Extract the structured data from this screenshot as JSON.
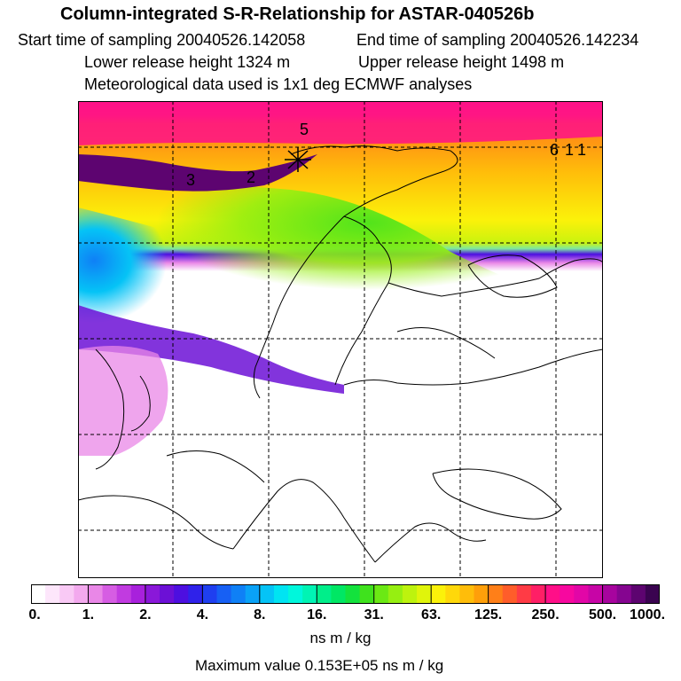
{
  "header": {
    "title": "Column-integrated S-R-Relationship for ASTAR-040526b",
    "start": "Start time of sampling 20040526.142058",
    "end": "End time of sampling 20040526.142234",
    "lower": "Lower release height 1324 m",
    "upper": "Upper release height 1498 m",
    "met": "Meteorological data used is 1x1 deg ECMWF analyses"
  },
  "map": {
    "labels": [
      "5",
      "3",
      "2",
      "6",
      "1",
      "1"
    ]
  },
  "colorbar": {
    "ticks": [
      "0.",
      "1.",
      "2.",
      "4.",
      "8.",
      "16.",
      "31.",
      "63.",
      "125.",
      "250.",
      "500.",
      "1000."
    ],
    "colors": [
      "#ffffff",
      "#fde6fb",
      "#f9c9f5",
      "#f3a9ee",
      "#e987e7",
      "#d65de3",
      "#c13be0",
      "#a821dc",
      "#8a18d9",
      "#6c10d6",
      "#4d0fe0",
      "#2f22ea",
      "#1f3ff0",
      "#1760f4",
      "#0f80f6",
      "#0aa2f7",
      "#05c3f6",
      "#00e4f2",
      "#00f7dc",
      "#00f4b4",
      "#00ee8a",
      "#00e764",
      "#13e23d",
      "#3fe21d",
      "#6be914",
      "#96ef11",
      "#bdf30e",
      "#e0f50b",
      "#fbf20a",
      "#ffd80a",
      "#ffbd0a",
      "#ff9f0a",
      "#ff7f18",
      "#ff5d2a",
      "#ff3b45",
      "#ff1f66",
      "#ff0f88",
      "#f7089f",
      "#e206a7",
      "#c705a6",
      "#a7049e",
      "#850590",
      "#5d0470",
      "#3a0350"
    ],
    "units": "ns m / kg"
  },
  "max_value": "Maximum value  0.153E+05 ns m / kg"
}
